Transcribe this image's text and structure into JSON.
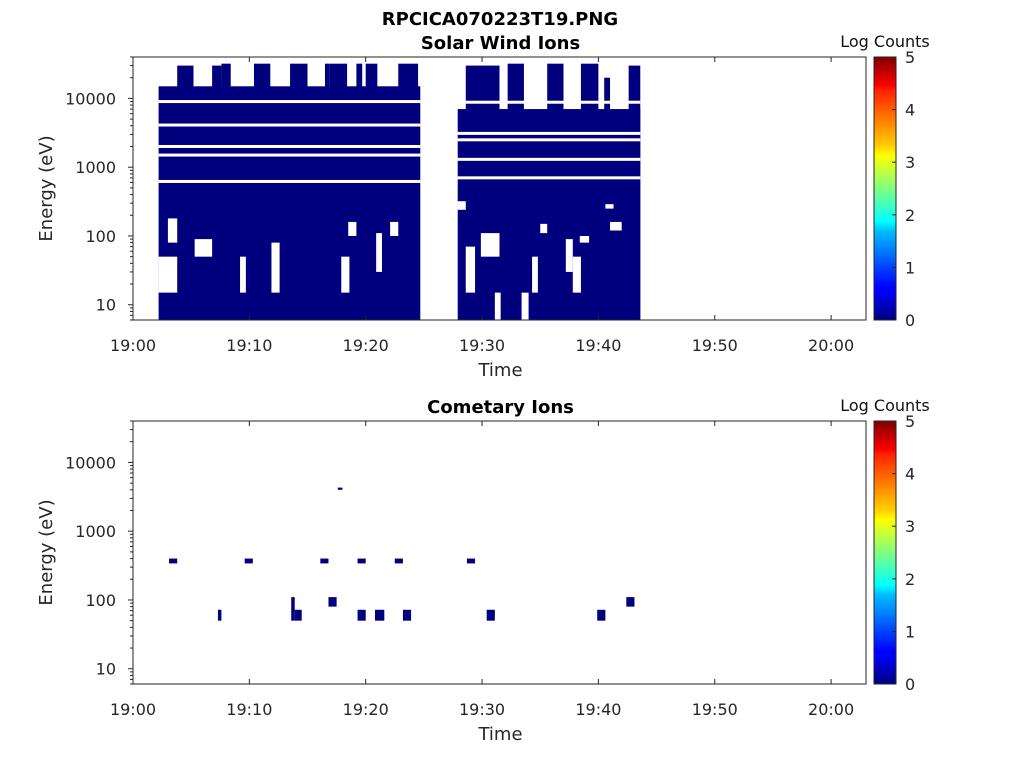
{
  "figure_title": "RPCICA070223T19.PNG",
  "colors": {
    "block": "#00007f",
    "faint_block": "#0a14c8",
    "frame": "#262626"
  },
  "chart_data": [
    {
      "type": "heatmap",
      "title": "Solar Wind Ions",
      "xlabel": "Time",
      "ylabel": "Energy (eV)",
      "x_ticks": [
        "19:00",
        "19:10",
        "19:20",
        "19:30",
        "19:40",
        "19:50",
        "20:00"
      ],
      "x_range_min": [
        0,
        63
      ],
      "y_scale": "log",
      "y_range": [
        6,
        40000
      ],
      "y_ticks": [
        10,
        100,
        1000,
        10000
      ],
      "colorbar": {
        "label": "Log Counts",
        "range": [
          0,
          5
        ],
        "ticks": [
          "0",
          "1",
          "2",
          "3",
          "4",
          "5"
        ],
        "colormap": "jet"
      },
      "description_value": "count blocks mostly at log counts ~0",
      "blocks": [
        {
          "t0": 2.2,
          "t1": 24.7,
          "e0": 6,
          "e1": 15000
        },
        {
          "t0": 3.8,
          "t1": 5.2,
          "e0": 6,
          "e1": 30000
        },
        {
          "t0": 6.8,
          "t1": 7.6,
          "e0": 6,
          "e1": 30000
        },
        {
          "t0": 7.6,
          "t1": 8.4,
          "e0": 6,
          "e1": 32000
        },
        {
          "t0": 10.4,
          "t1": 11.8,
          "e0": 6,
          "e1": 32000
        },
        {
          "t0": 13.5,
          "t1": 15.0,
          "e0": 6,
          "e1": 32000
        },
        {
          "t0": 16.5,
          "t1": 16.9,
          "e0": 6,
          "e1": 32000
        },
        {
          "t0": 16.9,
          "t1": 18.4,
          "e0": 6,
          "e1": 32000
        },
        {
          "t0": 19.2,
          "t1": 19.7,
          "e0": 6,
          "e1": 32000
        },
        {
          "t0": 20.0,
          "t1": 21.0,
          "e0": 6,
          "e1": 32000
        },
        {
          "t0": 22.8,
          "t1": 24.5,
          "e0": 6,
          "e1": 32000
        },
        {
          "t0": 27.9,
          "t1": 43.6,
          "e0": 6,
          "e1": 7000
        },
        {
          "t0": 28.6,
          "t1": 31.5,
          "e0": 6,
          "e1": 30000
        },
        {
          "t0": 32.2,
          "t1": 33.6,
          "e0": 6,
          "e1": 32000
        },
        {
          "t0": 35.6,
          "t1": 37.0,
          "e0": 6,
          "e1": 32000
        },
        {
          "t0": 38.5,
          "t1": 40.0,
          "e0": 6,
          "e1": 32000
        },
        {
          "t0": 42.6,
          "t1": 43.6,
          "e0": 6,
          "e1": 30000
        },
        {
          "t0": 40.5,
          "t1": 41.0,
          "e0": 6,
          "e1": 20000
        }
      ],
      "gaps": [
        {
          "t0": 2.2,
          "t1": 3.8,
          "e0": 15,
          "e1": 50
        },
        {
          "t0": 3.0,
          "t1": 3.8,
          "e0": 80,
          "e1": 180
        },
        {
          "t0": 5.3,
          "t1": 6.8,
          "e0": 50,
          "e1": 90
        },
        {
          "t0": 9.2,
          "t1": 9.7,
          "e0": 15,
          "e1": 50
        },
        {
          "t0": 11.9,
          "t1": 12.6,
          "e0": 15,
          "e1": 80
        },
        {
          "t0": 17.9,
          "t1": 18.6,
          "e0": 15,
          "e1": 50
        },
        {
          "t0": 18.5,
          "t1": 19.2,
          "e0": 100,
          "e1": 160
        },
        {
          "t0": 20.9,
          "t1": 21.4,
          "e0": 30,
          "e1": 110
        },
        {
          "t0": 22.1,
          "t1": 22.8,
          "e0": 100,
          "e1": 160
        },
        {
          "t0": 27.9,
          "t1": 28.6,
          "e0": 240,
          "e1": 320
        },
        {
          "t0": 28.6,
          "t1": 29.4,
          "e0": 15,
          "e1": 70
        },
        {
          "t0": 29.9,
          "t1": 31.5,
          "e0": 50,
          "e1": 110
        },
        {
          "t0": 31.1,
          "t1": 31.6,
          "e0": 6,
          "e1": 15
        },
        {
          "t0": 33.4,
          "t1": 34.0,
          "e0": 6,
          "e1": 15
        },
        {
          "t0": 34.3,
          "t1": 34.8,
          "e0": 15,
          "e1": 50
        },
        {
          "t0": 35.0,
          "t1": 35.6,
          "e0": 110,
          "e1": 150
        },
        {
          "t0": 37.2,
          "t1": 37.8,
          "e0": 30,
          "e1": 90
        },
        {
          "t0": 37.8,
          "t1": 38.5,
          "e0": 15,
          "e1": 50
        },
        {
          "t0": 38.4,
          "t1": 39.2,
          "e0": 80,
          "e1": 100
        },
        {
          "t0": 40.6,
          "t1": 41.3,
          "e0": 250,
          "e1": 290
        },
        {
          "t0": 41.0,
          "t1": 42.0,
          "e0": 120,
          "e1": 160
        },
        {
          "t0": 24.7,
          "t1": 27.9,
          "e0": 6,
          "e1": 40000
        }
      ],
      "stripes": [
        {
          "t0": 2.2,
          "t1": 24.7,
          "e": [
            620,
            4100,
            1500,
            9000,
            2000
          ]
        },
        {
          "t0": 27.9,
          "t1": 43.6,
          "e": [
            700,
            3100,
            1300,
            8800,
            2500
          ]
        }
      ]
    },
    {
      "type": "heatmap",
      "title": "Cometary Ions",
      "xlabel": "Time",
      "ylabel": "Energy (eV)",
      "x_ticks": [
        "19:00",
        "19:10",
        "19:20",
        "19:30",
        "19:40",
        "19:50",
        "20:00"
      ],
      "x_range_min": [
        0,
        63
      ],
      "y_scale": "log",
      "y_range": [
        6,
        40000
      ],
      "y_ticks": [
        10,
        100,
        1000,
        10000
      ],
      "colorbar": {
        "label": "Log Counts",
        "range": [
          0,
          5
        ],
        "ticks": [
          "0",
          "1",
          "2",
          "3",
          "4",
          "5"
        ],
        "colormap": "jet"
      },
      "blocks": [
        {
          "t0": 3.1,
          "t1": 3.8,
          "e0": 340,
          "e1": 400
        },
        {
          "t0": 7.3,
          "t1": 7.6,
          "e0": 50,
          "e1": 72
        },
        {
          "t0": 9.6,
          "t1": 10.3,
          "e0": 340,
          "e1": 400
        },
        {
          "t0": 13.6,
          "t1": 13.9,
          "e0": 50,
          "e1": 110
        },
        {
          "t0": 13.9,
          "t1": 14.5,
          "e0": 50,
          "e1": 72
        },
        {
          "t0": 16.1,
          "t1": 16.8,
          "e0": 340,
          "e1": 400
        },
        {
          "t0": 16.8,
          "t1": 17.5,
          "e0": 80,
          "e1": 110
        },
        {
          "t0": 17.6,
          "t1": 18.0,
          "e0": 4000,
          "e1": 4300
        },
        {
          "t0": 19.3,
          "t1": 20.0,
          "e0": 340,
          "e1": 400
        },
        {
          "t0": 19.3,
          "t1": 20.0,
          "e0": 50,
          "e1": 72
        },
        {
          "t0": 20.8,
          "t1": 21.6,
          "e0": 50,
          "e1": 72
        },
        {
          "t0": 22.5,
          "t1": 23.2,
          "e0": 340,
          "e1": 400
        },
        {
          "t0": 23.2,
          "t1": 23.9,
          "e0": 50,
          "e1": 72
        },
        {
          "t0": 28.7,
          "t1": 29.4,
          "e0": 340,
          "e1": 400
        },
        {
          "t0": 30.4,
          "t1": 31.1,
          "e0": 50,
          "e1": 72
        },
        {
          "t0": 39.9,
          "t1": 40.6,
          "e0": 50,
          "e1": 72
        },
        {
          "t0": 42.4,
          "t1": 43.1,
          "e0": 80,
          "e1": 110
        }
      ],
      "gaps": [],
      "stripes": []
    }
  ]
}
